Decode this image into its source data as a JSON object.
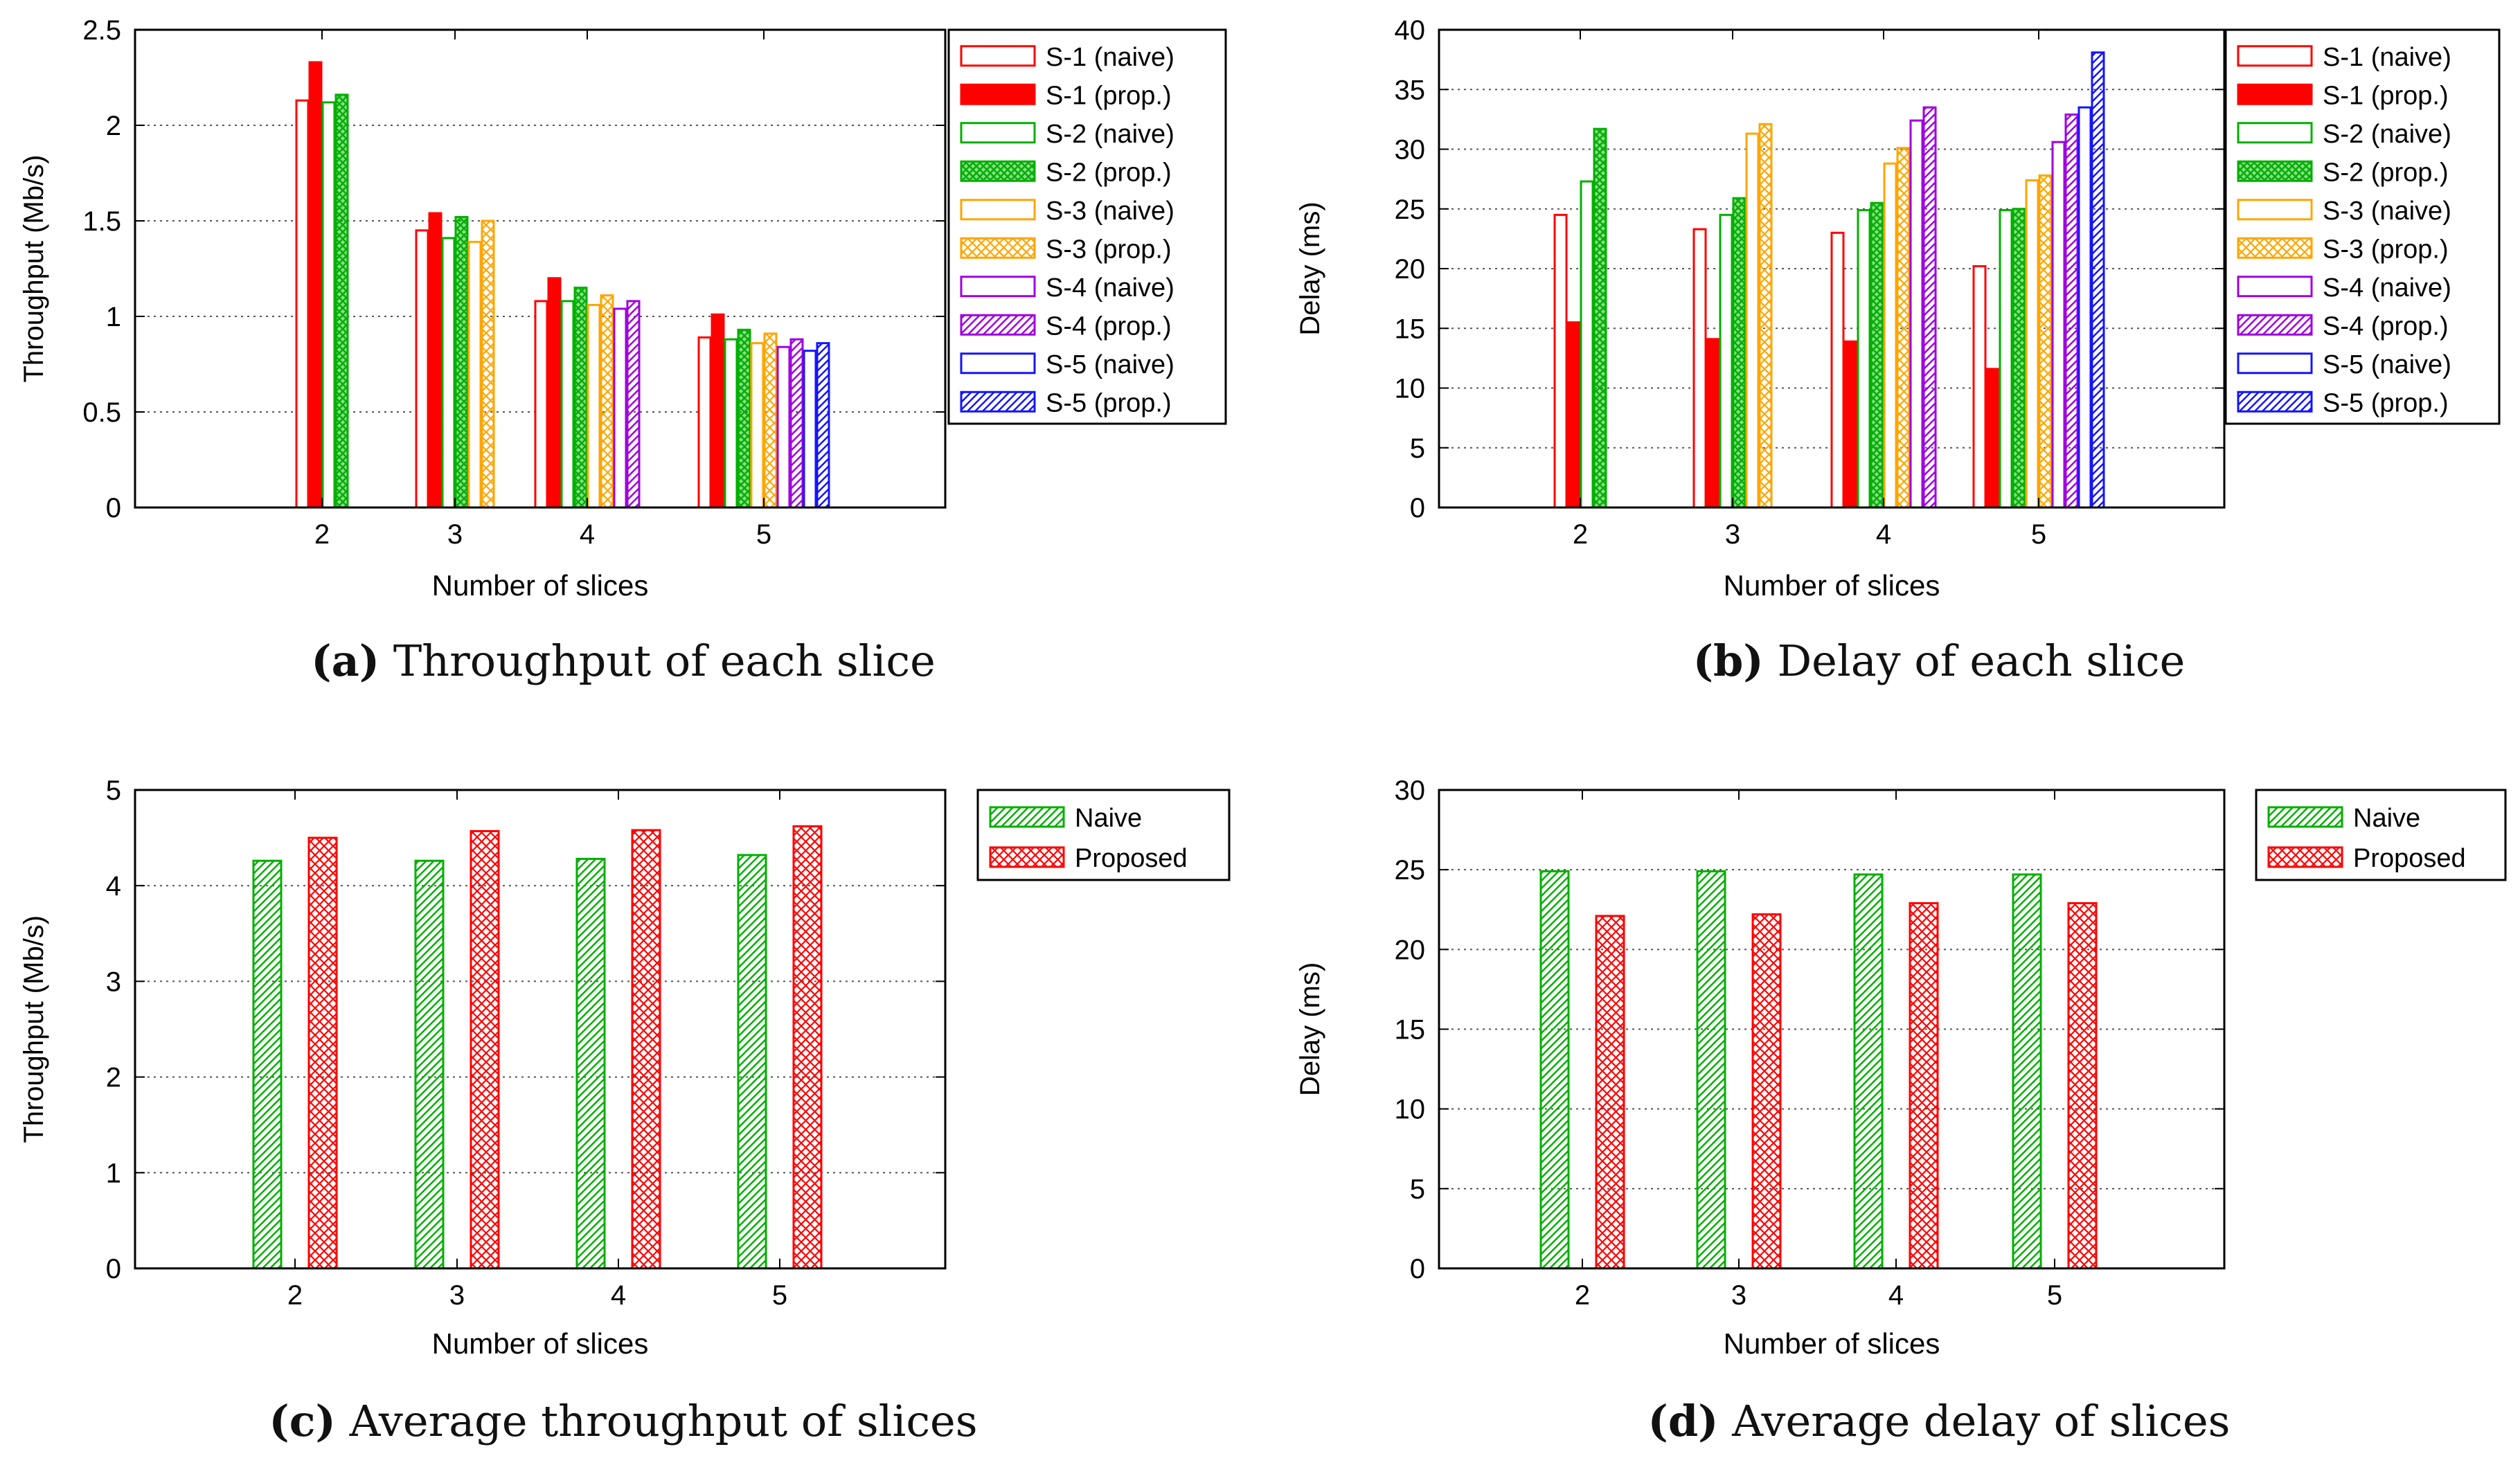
{
  "colors": {
    "red": "#ff0000",
    "green": "#00b000",
    "orange": "#ffa500",
    "purple": "#a000e0",
    "blue": "#1414ff",
    "gridline": "#555555"
  },
  "captions": [
    {
      "letter": "a",
      "text": "Throughput of each slice"
    },
    {
      "letter": "b",
      "text": "Delay of each slice"
    },
    {
      "letter": "c",
      "text": "Average throughput of slices"
    },
    {
      "letter": "d",
      "text": "Average delay of slices"
    }
  ],
  "chart_data": [
    {
      "type": "bar",
      "xlabel": "Number of slices",
      "ylabel": "Throughput (Mb/s)",
      "ylim": [
        0,
        2.5
      ],
      "yticks": [
        "0",
        "0.5",
        "1",
        "1.5",
        "2",
        "2.5"
      ],
      "categories": [
        "2",
        "3",
        "4",
        "5"
      ],
      "grid": "horizontal dotted",
      "legend_position": "outside-right",
      "series": [
        {
          "name": "S-1 (naive)",
          "color": "red",
          "fill": "none",
          "values": [
            2.13,
            1.45,
            1.08,
            0.89
          ]
        },
        {
          "name": "S-1 (prop.)",
          "color": "red",
          "fill": "solid",
          "values": [
            2.33,
            1.54,
            1.2,
            1.01
          ]
        },
        {
          "name": "S-2 (naive)",
          "color": "green",
          "fill": "none",
          "values": [
            2.12,
            1.41,
            1.08,
            0.88
          ]
        },
        {
          "name": "S-2 (prop.)",
          "color": "green",
          "fill": "crosshatch",
          "values": [
            2.16,
            1.52,
            1.15,
            0.93
          ]
        },
        {
          "name": "S-3 (naive)",
          "color": "orange",
          "fill": "none",
          "values": [
            null,
            1.39,
            1.06,
            0.86
          ]
        },
        {
          "name": "S-3 (prop.)",
          "color": "orange",
          "fill": "crosshatch-open",
          "values": [
            null,
            1.5,
            1.11,
            0.91
          ]
        },
        {
          "name": "S-4 (naive)",
          "color": "purple",
          "fill": "none",
          "values": [
            null,
            null,
            1.04,
            0.84
          ]
        },
        {
          "name": "S-4 (prop.)",
          "color": "purple",
          "fill": "hatch",
          "values": [
            null,
            null,
            1.08,
            0.88
          ]
        },
        {
          "name": "S-5 (naive)",
          "color": "blue",
          "fill": "none",
          "values": [
            null,
            null,
            null,
            0.82
          ]
        },
        {
          "name": "S-5 (prop.)",
          "color": "blue",
          "fill": "hatch",
          "values": [
            null,
            null,
            null,
            0.86
          ]
        }
      ]
    },
    {
      "type": "bar",
      "xlabel": "Number of slices",
      "ylabel": "Delay (ms)",
      "ylim": [
        0,
        40
      ],
      "yticks": [
        "0",
        "5",
        "10",
        "15",
        "20",
        "25",
        "30",
        "35",
        "40"
      ],
      "categories": [
        "2",
        "3",
        "4",
        "5"
      ],
      "grid": "horizontal dotted",
      "legend_position": "outside-right",
      "series": [
        {
          "name": "S-1 (naive)",
          "color": "red",
          "fill": "none",
          "values": [
            24.5,
            23.3,
            23.0,
            20.2
          ]
        },
        {
          "name": "S-1 (prop.)",
          "color": "red",
          "fill": "solid",
          "values": [
            15.5,
            14.1,
            13.9,
            11.6
          ]
        },
        {
          "name": "S-2 (naive)",
          "color": "green",
          "fill": "none",
          "values": [
            27.3,
            24.5,
            24.9,
            24.9
          ]
        },
        {
          "name": "S-2 (prop.)",
          "color": "green",
          "fill": "crosshatch",
          "values": [
            31.7,
            25.9,
            25.5,
            25.0
          ]
        },
        {
          "name": "S-3 (naive)",
          "color": "orange",
          "fill": "none",
          "values": [
            null,
            31.3,
            28.8,
            27.4
          ]
        },
        {
          "name": "S-3 (prop.)",
          "color": "orange",
          "fill": "crosshatch-open",
          "values": [
            null,
            32.1,
            30.1,
            27.8
          ]
        },
        {
          "name": "S-4 (naive)",
          "color": "purple",
          "fill": "none",
          "values": [
            null,
            null,
            32.4,
            30.6
          ]
        },
        {
          "name": "S-4 (prop.)",
          "color": "purple",
          "fill": "hatch",
          "values": [
            null,
            null,
            33.5,
            32.9
          ]
        },
        {
          "name": "S-5 (naive)",
          "color": "blue",
          "fill": "none",
          "values": [
            null,
            null,
            null,
            33.5
          ]
        },
        {
          "name": "S-5 (prop.)",
          "color": "blue",
          "fill": "hatch",
          "values": [
            null,
            null,
            null,
            38.1
          ]
        }
      ]
    },
    {
      "type": "bar",
      "xlabel": "Number of slices",
      "ylabel": "Throughput (Mb/s)",
      "ylim": [
        0,
        5
      ],
      "yticks": [
        "0",
        "1",
        "2",
        "3",
        "4",
        "5"
      ],
      "categories": [
        "2",
        "3",
        "4",
        "5"
      ],
      "grid": "horizontal dotted",
      "legend_position": "outside-right",
      "series": [
        {
          "name": "Naive",
          "color": "green",
          "fill": "hatch",
          "values": [
            4.26,
            4.26,
            4.28,
            4.32
          ]
        },
        {
          "name": "Proposed",
          "color": "red",
          "fill": "crosshatch-open",
          "values": [
            4.5,
            4.57,
            4.58,
            4.62
          ]
        }
      ]
    },
    {
      "type": "bar",
      "xlabel": "Number of slices",
      "ylabel": "Delay (ms)",
      "ylim": [
        0,
        30
      ],
      "yticks": [
        "0",
        "5",
        "10",
        "15",
        "20",
        "25",
        "30"
      ],
      "categories": [
        "2",
        "3",
        "4",
        "5"
      ],
      "grid": "horizontal dotted",
      "legend_position": "outside-right",
      "series": [
        {
          "name": "Naive",
          "color": "green",
          "fill": "hatch",
          "values": [
            24.9,
            24.9,
            24.7,
            24.7
          ]
        },
        {
          "name": "Proposed",
          "color": "red",
          "fill": "crosshatch-open",
          "values": [
            22.1,
            22.2,
            22.9,
            22.9
          ]
        }
      ]
    }
  ]
}
